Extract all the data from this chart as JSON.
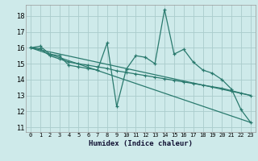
{
  "xlabel": "Humidex (Indice chaleur)",
  "bg_color": "#ceeaea",
  "grid_color": "#aacccc",
  "line_color": "#2a7a6e",
  "xlim": [
    -0.5,
    23.5
  ],
  "ylim": [
    10.7,
    18.7
  ],
  "yticks": [
    11,
    12,
    13,
    14,
    15,
    16,
    17,
    18
  ],
  "xticks": [
    0,
    1,
    2,
    3,
    4,
    5,
    6,
    7,
    8,
    9,
    10,
    11,
    12,
    13,
    14,
    15,
    16,
    17,
    18,
    19,
    20,
    21,
    22,
    23
  ],
  "series1_x": [
    0,
    1,
    2,
    3,
    4,
    5,
    6,
    7,
    8,
    9,
    10,
    11,
    12,
    13,
    14,
    15,
    16,
    17,
    18,
    19,
    20,
    21,
    22,
    23
  ],
  "series1_y": [
    16.0,
    16.1,
    15.6,
    15.5,
    14.9,
    14.8,
    14.7,
    14.6,
    16.3,
    12.3,
    14.65,
    15.5,
    15.4,
    15.0,
    18.4,
    15.6,
    15.9,
    15.1,
    14.6,
    14.4,
    14.0,
    13.4,
    12.1,
    11.3
  ],
  "series2_x": [
    0,
    1,
    2,
    3,
    4,
    5,
    6,
    7,
    8,
    9,
    10,
    11,
    12,
    13,
    14,
    15,
    16,
    17,
    18,
    19,
    20,
    21,
    22,
    23
  ],
  "series2_y": [
    16.0,
    15.95,
    15.5,
    15.3,
    15.1,
    15.0,
    14.9,
    14.8,
    14.7,
    14.55,
    14.45,
    14.35,
    14.25,
    14.15,
    14.05,
    13.95,
    13.85,
    13.75,
    13.65,
    13.55,
    13.45,
    13.3,
    13.15,
    13.0
  ],
  "series3_x": [
    0,
    23
  ],
  "series3_y": [
    16.0,
    11.3
  ],
  "series4_x": [
    0,
    23
  ],
  "series4_y": [
    16.0,
    13.0
  ]
}
